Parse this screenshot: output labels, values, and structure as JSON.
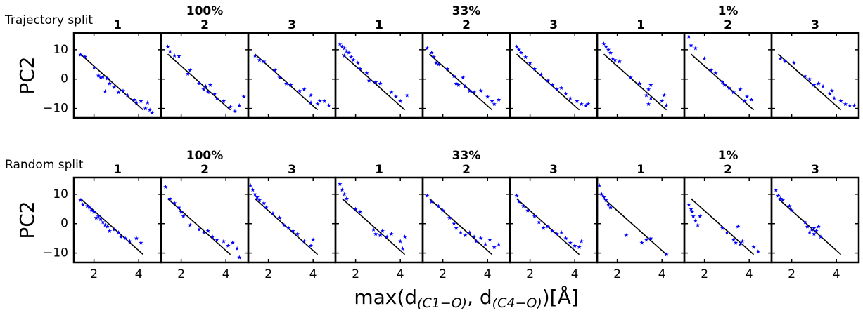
{
  "figure": {
    "row_labels": [
      "Trajectory split",
      "Random split"
    ],
    "group_titles": [
      "100%",
      "33%",
      "1%"
    ],
    "y_label": "PC2",
    "x_label": [
      "max(d",
      "(C1−O)",
      ", d",
      "(C4−O)",
      ")[Å]"
    ]
  },
  "chart_data": [
    {
      "type": "scatter",
      "title": "1",
      "color": "#0000ff",
      "xlim": [
        1.1,
        5.0
      ],
      "ylim": [
        -13.2,
        15.7
      ],
      "xticks": [
        2,
        4
      ],
      "yticks": [
        {
          "value": -10,
          "label": "−10"
        },
        0,
        10
      ],
      "fit_x": [
        1.4,
        4.2
      ],
      "fit_y": [
        8.5,
        -10.5
      ],
      "x": [
        1.4,
        1.6,
        2.0,
        2.2,
        2.4,
        2.6,
        2.7,
        2.5,
        2.9,
        3.1,
        3.3,
        3.5,
        3.8,
        3.9,
        4.1,
        4.3,
        4.5,
        4.6,
        4.4,
        2.3
      ],
      "y": [
        8.3,
        7.6,
        4.0,
        1.2,
        0.8,
        0.2,
        -1.5,
        -4.2,
        -2.8,
        -4.5,
        -4.0,
        -5.5,
        -7.0,
        -8.0,
        -7.5,
        -10.0,
        -10.5,
        -11.5,
        -8.0,
        0.5
      ]
    },
    {
      "type": "scatter",
      "title": "2",
      "color": "#0000ff",
      "xlim": [
        1.1,
        5.0
      ],
      "ylim": [
        -13.2,
        15.7
      ],
      "xticks": [
        2,
        4
      ],
      "yticks": [
        {
          "value": -10,
          "label": "−10"
        },
        0,
        10
      ],
      "fit_x": [
        1.4,
        4.2
      ],
      "fit_y": [
        8.5,
        -10.5
      ],
      "x": [
        1.4,
        1.5,
        1.7,
        1.9,
        2.4,
        2.3,
        2.8,
        3.0,
        3.2,
        3.3,
        3.5,
        3.6,
        3.9,
        4.2,
        4.4,
        4.6,
        4.8,
        3.1
      ],
      "y": [
        11,
        9.5,
        8.0,
        7.8,
        3.0,
        1.8,
        -1.5,
        -3.5,
        -4.5,
        -2.0,
        -5.0,
        -6.5,
        -7.5,
        -9.5,
        -11,
        -9.0,
        -6.0,
        -2.5
      ]
    },
    {
      "type": "scatter",
      "title": "3",
      "color": "#0000ff",
      "xlim": [
        1.1,
        5.0
      ],
      "ylim": [
        -13.2,
        15.7
      ],
      "xticks": [
        2,
        4
      ],
      "yticks": [
        {
          "value": -10,
          "label": "−10"
        },
        0,
        10
      ],
      "fit_x": [
        1.4,
        4.2
      ],
      "fit_y": [
        8.5,
        -10.5
      ],
      "x": [
        1.4,
        1.6,
        1.8,
        2.3,
        2.5,
        2.8,
        3.0,
        3.4,
        3.6,
        3.9,
        3.9,
        4.3,
        4.5,
        4.7,
        4.2
      ],
      "y": [
        8,
        6.5,
        6.0,
        3.0,
        0.5,
        -1.5,
        -2.0,
        -4.0,
        -3.5,
        -5.5,
        -8.0,
        -7.5,
        -7.5,
        -9.0,
        -8.5
      ]
    },
    {
      "type": "scatter",
      "title": "1",
      "color": "#0000ff",
      "xlim": [
        1.1,
        5.0
      ],
      "ylim": [
        -13.2,
        15.7
      ],
      "xticks": [
        2,
        4
      ],
      "yticks": [
        {
          "value": -10,
          "label": "−10"
        },
        0,
        10
      ],
      "fit_x": [
        1.4,
        4.2
      ],
      "fit_y": [
        8.5,
        -10.5
      ],
      "x": [
        1.3,
        1.4,
        1.5,
        1.6,
        1.7,
        1.5,
        1.8,
        1.9,
        2.1,
        2.2,
        2.5,
        2.6,
        2.9,
        3.1,
        3.6,
        3.8,
        4.0,
        4.3
      ],
      "y": [
        12,
        11,
        10.5,
        9.5,
        9.0,
        8.0,
        7.5,
        6.5,
        5.5,
        3.5,
        2.0,
        -0.5,
        -1.0,
        -1.5,
        -4.5,
        -6.0,
        -7.5,
        -5.5
      ]
    },
    {
      "type": "scatter",
      "title": "2",
      "color": "#0000ff",
      "xlim": [
        1.1,
        5.0
      ],
      "ylim": [
        -13.2,
        15.7
      ],
      "xticks": [
        2,
        4
      ],
      "yticks": [
        {
          "value": -10,
          "label": "−10"
        },
        0,
        10
      ],
      "fit_x": [
        1.4,
        4.2
      ],
      "fit_y": [
        8.5,
        -10.5
      ],
      "x": [
        1.3,
        1.5,
        1.6,
        1.7,
        1.8,
        2.2,
        2.5,
        2.6,
        2.7,
        3.0,
        3.2,
        3.4,
        3.7,
        4.0,
        4.2,
        4.3,
        4.5,
        2.9
      ],
      "y": [
        10.5,
        9.0,
        7.5,
        5.5,
        5.0,
        3.5,
        1.0,
        -1.5,
        -2.0,
        -2.5,
        -4.0,
        -4.5,
        -4.0,
        -6.0,
        -7.5,
        -8.5,
        -7.0,
        0.5
      ]
    },
    {
      "type": "scatter",
      "title": "3",
      "color": "#0000ff",
      "xlim": [
        1.1,
        5.0
      ],
      "ylim": [
        -13.2,
        15.7
      ],
      "xticks": [
        2,
        4
      ],
      "yticks": [
        {
          "value": -10,
          "label": "−10"
        },
        0,
        10
      ],
      "fit_x": [
        1.4,
        4.2
      ],
      "fit_y": [
        8.5,
        -10.5
      ],
      "x": [
        1.4,
        1.5,
        1.6,
        1.8,
        2.0,
        2.2,
        2.5,
        2.8,
        3.0,
        3.2,
        3.4,
        3.6,
        3.8,
        4.1,
        4.3,
        4.5,
        4.6
      ],
      "y": [
        11,
        10,
        9,
        7.5,
        5.5,
        3.5,
        1.5,
        -0.5,
        -2.0,
        -3.5,
        -3.0,
        -5.0,
        -6.5,
        -7.5,
        -8.5,
        -9.0,
        -8.5
      ]
    },
    {
      "type": "scatter",
      "title": "1",
      "color": "#0000ff",
      "xlim": [
        1.1,
        5.0
      ],
      "ylim": [
        -13.2,
        15.7
      ],
      "xticks": [
        2,
        4
      ],
      "yticks": [
        {
          "value": -10,
          "label": "−10"
        },
        0,
        10
      ],
      "fit_x": [
        1.4,
        4.2
      ],
      "fit_y": [
        8.5,
        -10.5
      ],
      "x": [
        1.4,
        1.5,
        1.6,
        1.7,
        1.8,
        1.9,
        2.1,
        2.6,
        3.0,
        3.4,
        3.5,
        3.3,
        3.5,
        4.0,
        4.1,
        4.2,
        3.4
      ],
      "y": [
        12,
        11,
        10,
        9,
        7,
        6.5,
        6.0,
        0.5,
        -1.5,
        -3.5,
        -2.0,
        -5.5,
        -6.5,
        -7.5,
        -5.5,
        -9.0,
        -8.5
      ]
    },
    {
      "type": "scatter",
      "title": "2",
      "color": "#0000ff",
      "xlim": [
        1.1,
        5.0
      ],
      "ylim": [
        -13.2,
        15.7
      ],
      "xticks": [
        2,
        4
      ],
      "yticks": [
        {
          "value": -10,
          "label": "−10"
        },
        0,
        10
      ],
      "fit_x": [
        1.4,
        4.2
      ],
      "fit_y": [
        8.5,
        -10.5
      ],
      "x": [
        1.3,
        1.4,
        1.6,
        2.0,
        2.3,
        2.5,
        2.8,
        2.9,
        3.1,
        3.3,
        3.6,
        3.9,
        3.8,
        4.1
      ],
      "y": [
        14.5,
        11.5,
        10.5,
        7.0,
        3.0,
        2.0,
        -1.0,
        -2.0,
        -3.0,
        -4.5,
        -3.5,
        -6.0,
        -7.5,
        -7.0
      ]
    },
    {
      "type": "scatter",
      "title": "3",
      "color": "#0000ff",
      "xlim": [
        1.1,
        5.0
      ],
      "ylim": [
        -13.2,
        15.7
      ],
      "xticks": [
        2,
        4
      ],
      "yticks": [
        {
          "value": -10,
          "label": "−10"
        },
        0,
        10
      ],
      "fit_x": [
        1.4,
        4.2
      ],
      "fit_y": [
        8.5,
        -10.5
      ],
      "x": [
        1.5,
        1.7,
        2.1,
        2.6,
        2.8,
        3.0,
        3.2,
        3.4,
        3.7,
        3.8,
        3.9,
        4.2,
        4.4,
        4.6,
        4.8
      ],
      "y": [
        7.0,
        6.0,
        5.5,
        1.0,
        0.0,
        -2.0,
        -1.5,
        -2.5,
        -5.0,
        -4.0,
        -6.5,
        -7.5,
        -8.5,
        -9.0,
        -9.0
      ]
    },
    {
      "type": "scatter",
      "title": "1",
      "color": "#0000ff",
      "xlim": [
        1.1,
        5.0
      ],
      "ylim": [
        -13.2,
        15.7
      ],
      "xticks": [
        2,
        4
      ],
      "yticks": [
        {
          "value": -10,
          "label": "−10"
        },
        0,
        10
      ],
      "fit_x": [
        1.4,
        4.2
      ],
      "fit_y": [
        8.5,
        -10.5
      ],
      "x": [
        1.4,
        1.5,
        1.7,
        1.8,
        1.9,
        2.0,
        2.2,
        2.3,
        2.4,
        2.5,
        2.6,
        2.7,
        2.9,
        3.1,
        3.2,
        3.4,
        3.6,
        3.9,
        4.1,
        2.1
      ],
      "y": [
        8,
        6.5,
        6.0,
        5.5,
        4.5,
        4.0,
        2.5,
        1.5,
        0.5,
        -0.5,
        -1.0,
        -2.5,
        -2.0,
        -3.0,
        -4.5,
        -5.0,
        -6.0,
        -5.0,
        -6.5,
        2.0
      ]
    },
    {
      "type": "scatter",
      "title": "2",
      "color": "#0000ff",
      "xlim": [
        1.1,
        5.0
      ],
      "ylim": [
        -13.2,
        15.7
      ],
      "xticks": [
        2,
        4
      ],
      "yticks": [
        {
          "value": -10,
          "label": "−10"
        },
        0,
        10
      ],
      "fit_x": [
        1.4,
        4.2
      ],
      "fit_y": [
        8.5,
        -10.5
      ],
      "x": [
        1.3,
        1.5,
        1.7,
        1.9,
        2.0,
        2.1,
        2.4,
        2.8,
        3.0,
        3.2,
        3.4,
        3.6,
        3.9,
        4.1,
        4.3,
        4.5,
        4.6
      ],
      "y": [
        12.5,
        8.5,
        7.0,
        5.5,
        4.0,
        2.5,
        -0.5,
        -2.0,
        -3.0,
        -2.5,
        -4.5,
        -5.5,
        -6.0,
        -7.5,
        -6.5,
        -8.5,
        -11.5
      ]
    },
    {
      "type": "scatter",
      "title": "3",
      "color": "#0000ff",
      "xlim": [
        1.1,
        5.0
      ],
      "ylim": [
        -13.2,
        15.7
      ],
      "xticks": [
        2,
        4
      ],
      "yticks": [
        {
          "value": -10,
          "label": "−10"
        },
        0,
        10
      ],
      "fit_x": [
        1.4,
        4.2
      ],
      "fit_y": [
        8.5,
        -10.5
      ],
      "x": [
        1.2,
        1.3,
        1.4,
        1.5,
        1.6,
        1.8,
        1.9,
        2.2,
        2.5,
        2.7,
        2.9,
        3.1,
        3.3,
        3.6,
        3.9,
        4.0
      ],
      "y": [
        13,
        11.5,
        10,
        9,
        8,
        7.0,
        5.5,
        3.5,
        2.0,
        -0.5,
        -1.5,
        -2.5,
        -3.5,
        -6.0,
        -7.5,
        -5.5
      ]
    },
    {
      "type": "scatter",
      "title": "1",
      "color": "#0000ff",
      "xlim": [
        1.1,
        5.0
      ],
      "ylim": [
        -13.2,
        15.7
      ],
      "xticks": [
        2,
        4
      ],
      "yticks": [
        {
          "value": -10,
          "label": "−10"
        },
        0,
        10
      ],
      "fit_x": [
        1.4,
        4.2
      ],
      "fit_y": [
        8.5,
        -10.5
      ],
      "x": [
        1.3,
        1.4,
        1.5,
        1.6,
        2.0,
        2.2,
        2.8,
        2.9,
        3.1,
        3.2,
        3.4,
        3.6,
        4.0,
        4.1,
        4.2
      ],
      "y": [
        13.5,
        11.5,
        10.0,
        8.5,
        5.0,
        4.0,
        -2.0,
        -3.5,
        -4.0,
        -2.5,
        -4.5,
        -3.5,
        -6.0,
        -8.5,
        -4.5
      ]
    },
    {
      "type": "scatter",
      "title": "2",
      "color": "#0000ff",
      "xlim": [
        1.1,
        5.0
      ],
      "ylim": [
        -13.2,
        15.7
      ],
      "xticks": [
        2,
        4
      ],
      "yticks": [
        {
          "value": -10,
          "label": "−10"
        },
        0,
        10
      ],
      "fit_x": [
        1.4,
        4.2
      ],
      "fit_y": [
        8.5,
        -10.5
      ],
      "x": [
        1.3,
        1.5,
        1.8,
        2.0,
        2.3,
        2.5,
        2.6,
        2.8,
        3.0,
        3.2,
        3.4,
        3.5,
        3.7,
        3.9,
        4.1,
        4.3,
        4.5
      ],
      "y": [
        9.5,
        7.5,
        6.0,
        4.5,
        2.0,
        0.0,
        -1.5,
        -3.0,
        -4.0,
        -3.0,
        -4.5,
        -6.0,
        -5.0,
        -7.0,
        -5.5,
        -8.0,
        -7.0
      ]
    },
    {
      "type": "scatter",
      "title": "3",
      "color": "#0000ff",
      "xlim": [
        1.1,
        5.0
      ],
      "ylim": [
        -13.2,
        15.7
      ],
      "xticks": [
        2,
        4
      ],
      "yticks": [
        {
          "value": -10,
          "label": "−10"
        },
        0,
        10
      ],
      "fit_x": [
        1.4,
        4.2
      ],
      "fit_y": [
        8.5,
        -10.5
      ],
      "x": [
        1.4,
        1.5,
        1.7,
        1.9,
        2.2,
        2.4,
        2.6,
        2.8,
        3.0,
        3.2,
        3.4,
        3.6,
        3.8,
        4.0,
        4.2,
        4.3
      ],
      "y": [
        9.5,
        7.5,
        6.0,
        4.5,
        2.5,
        0.5,
        -1.5,
        -1.0,
        -2.5,
        -3.5,
        -3.0,
        -5.0,
        -6.5,
        -7.5,
        -8.0,
        -6.0
      ]
    },
    {
      "type": "scatter",
      "title": "1",
      "color": "#0000ff",
      "xlim": [
        1.1,
        5.0
      ],
      "ylim": [
        -13.2,
        15.7
      ],
      "xticks": [
        2,
        4
      ],
      "yticks": [
        {
          "value": -10,
          "label": "−10"
        },
        0,
        10
      ],
      "fit_x": [
        1.4,
        4.2
      ],
      "fit_y": [
        8.5,
        -10.5
      ],
      "x": [
        1.2,
        1.3,
        1.4,
        1.5,
        1.6,
        1.7,
        2.4,
        3.1,
        3.3,
        3.5,
        4.2
      ],
      "y": [
        13,
        10,
        9,
        8,
        6.5,
        5.5,
        -4.0,
        -6.5,
        -5.5,
        -5.0,
        -10.5
      ]
    },
    {
      "type": "scatter",
      "title": "2",
      "color": "#0000ff",
      "xlim": [
        1.1,
        5.0
      ],
      "ylim": [
        -13.2,
        15.7
      ],
      "xticks": [
        2,
        4
      ],
      "yticks": [
        {
          "value": -10,
          "label": "−10"
        },
        0,
        10
      ],
      "fit_x": [
        1.4,
        4.2
      ],
      "fit_y": [
        8.5,
        -10.5
      ],
      "x": [
        1.3,
        1.4,
        1.45,
        1.5,
        1.6,
        1.7,
        1.8,
        2.8,
        3.0,
        3.3,
        3.4,
        3.6,
        3.7,
        3.5,
        4.2,
        4.4
      ],
      "y": [
        6.5,
        5.0,
        4.0,
        2.5,
        1.0,
        -0.5,
        2.5,
        -1.5,
        -3.0,
        -5.5,
        -6.5,
        -7.0,
        -6.0,
        -1.0,
        -8.0,
        -9.5
      ]
    },
    {
      "type": "scatter",
      "title": "3",
      "color": "#0000ff",
      "xlim": [
        1.1,
        5.0
      ],
      "ylim": [
        -13.2,
        15.7
      ],
      "xticks": [
        2,
        4
      ],
      "yticks": [
        {
          "value": -10,
          "label": "−10"
        },
        0,
        10
      ],
      "fit_x": [
        1.4,
        4.2
      ],
      "fit_y": [
        8.5,
        -10.5
      ],
      "x": [
        1.3,
        1.4,
        1.5,
        1.6,
        1.9,
        2.0,
        2.6,
        2.7,
        2.9,
        3.0,
        3.1,
        3.2,
        3.3,
        2.8,
        3.0
      ],
      "y": [
        11.5,
        9.5,
        8.5,
        8.0,
        6.0,
        4.5,
        0.5,
        -1.0,
        -2.0,
        -3.5,
        -2.5,
        -1.0,
        -4.5,
        -3.0,
        -1.5
      ]
    }
  ]
}
